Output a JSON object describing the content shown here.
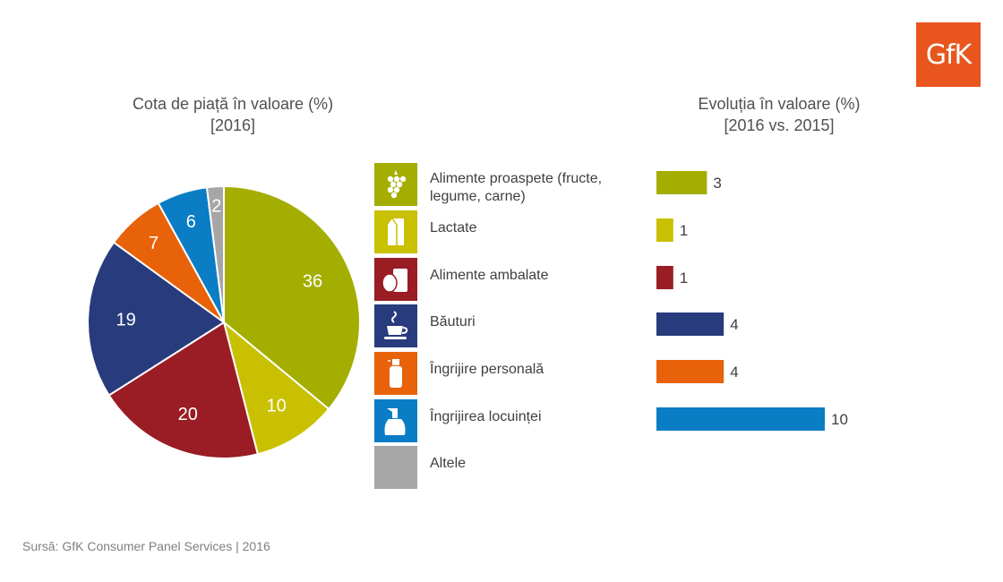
{
  "logo": {
    "text": "GfK",
    "color": "#e8561e"
  },
  "pie_title": {
    "line1": "Cota de piață în valoare (%)",
    "line2": "[2016]"
  },
  "bar_title": {
    "line1": "Evoluția în valoare (%)",
    "line2": "[2016 vs. 2015]"
  },
  "legend": [
    {
      "label": "Alimente proaspete (fructe, legume, carne)",
      "color": "#a3ae00",
      "icon": "grapes-icon"
    },
    {
      "label": "Lactate",
      "color": "#c8c000",
      "icon": "milk-carton-icon"
    },
    {
      "label": "Alimente ambalate",
      "color": "#9a1c24",
      "icon": "packaged-food-icon"
    },
    {
      "label": "Băuturi",
      "color": "#283b7c",
      "icon": "cup-icon"
    },
    {
      "label": "Îngrijire personală",
      "color": "#e8620a",
      "icon": "spray-bottle-icon"
    },
    {
      "label": "Îngrijirea locuinței",
      "color": "#0b7dc5",
      "icon": "cleaning-bottle-icon"
    },
    {
      "label": "Altele",
      "color": "#a6a6a6",
      "icon": ""
    }
  ],
  "chart_data": [
    {
      "type": "pie",
      "title": "Cota de piață în valoare (%) [2016]",
      "categories": [
        "Alimente proaspete (fructe, legume, carne)",
        "Lactate",
        "Alimente ambalate",
        "Băuturi",
        "Îngrijire personală",
        "Îngrijirea locuinței",
        "Altele"
      ],
      "values": [
        36,
        10,
        20,
        19,
        7,
        6,
        2
      ],
      "labels": [
        "36",
        "10",
        "20",
        "19",
        "7",
        "6",
        "2"
      ],
      "colors": [
        "#a3ae00",
        "#c8c000",
        "#9a1c24",
        "#283b7c",
        "#e8620a",
        "#0b7dc5",
        "#a6a6a6"
      ]
    },
    {
      "type": "bar",
      "orientation": "horizontal",
      "title": "Evoluția în valoare (%) [2016 vs. 2015]",
      "categories": [
        "Alimente proaspete (fructe, legume, carne)",
        "Lactate",
        "Alimente ambalate",
        "Băuturi",
        "Îngrijire personală",
        "Îngrijirea locuinței"
      ],
      "values": [
        3,
        1,
        1,
        4,
        4,
        10
      ],
      "labels": [
        "3",
        "1",
        "1",
        "4",
        "4",
        "10"
      ],
      "colors": [
        "#a3ae00",
        "#c8c000",
        "#9a1c24",
        "#283b7c",
        "#e8620a",
        "#0b7dc5"
      ]
    }
  ],
  "source": "Sursă: GfK Consumer Panel Services | 2016"
}
